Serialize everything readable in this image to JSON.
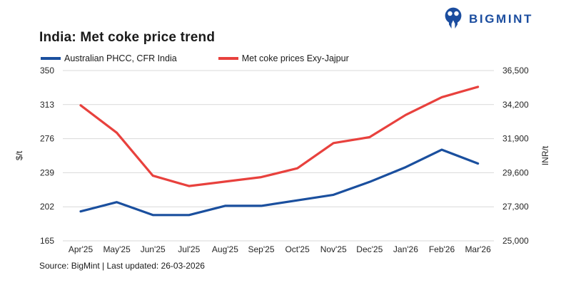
{
  "header": {
    "title": "India: Met coke price trend",
    "brand": "BIGMINT",
    "brand_color": "#1b4d9f"
  },
  "footer": {
    "text": "Source: BigMint | Last updated: 26-03-2026"
  },
  "chart_data": {
    "type": "line",
    "title": "India: Met coke price trend",
    "categories": [
      "Apr'25",
      "May'25",
      "Jun'25",
      "Jul'25",
      "Aug'25",
      "Sep'25",
      "Oct'25",
      "Nov'25",
      "Dec'25",
      "Jan'26",
      "Feb'26",
      "Mar'26"
    ],
    "series": [
      {
        "name": "Australian PHCC, CFR India",
        "axis": "left",
        "unit": "$/t",
        "color": "#1a4f9e",
        "values": [
          197,
          207,
          193,
          193,
          203,
          203,
          209,
          215,
          229,
          245,
          264,
          249
        ]
      },
      {
        "name": "Met coke prices Exy-Jajpur",
        "axis": "right",
        "unit": "INR/t",
        "color": "#e8413d",
        "values": [
          34150,
          32300,
          29400,
          28700,
          29000,
          29300,
          29900,
          31600,
          32000,
          33500,
          34700,
          35400
        ]
      }
    ],
    "axes": {
      "left": {
        "label": "$/t",
        "ticks": [
          "350",
          "313",
          "276",
          "239",
          "202",
          "165"
        ],
        "ylim": [
          165,
          350
        ]
      },
      "right": {
        "label": "INR/t",
        "ticks": [
          "36,500",
          "34,200",
          "31,900",
          "29,600",
          "27,300",
          "25,000"
        ],
        "ylim": [
          25000,
          36500
        ]
      }
    },
    "grid": true,
    "gridline_color": "#d9d9d9",
    "tick_color": "#262626",
    "legend_position": "top-left"
  }
}
